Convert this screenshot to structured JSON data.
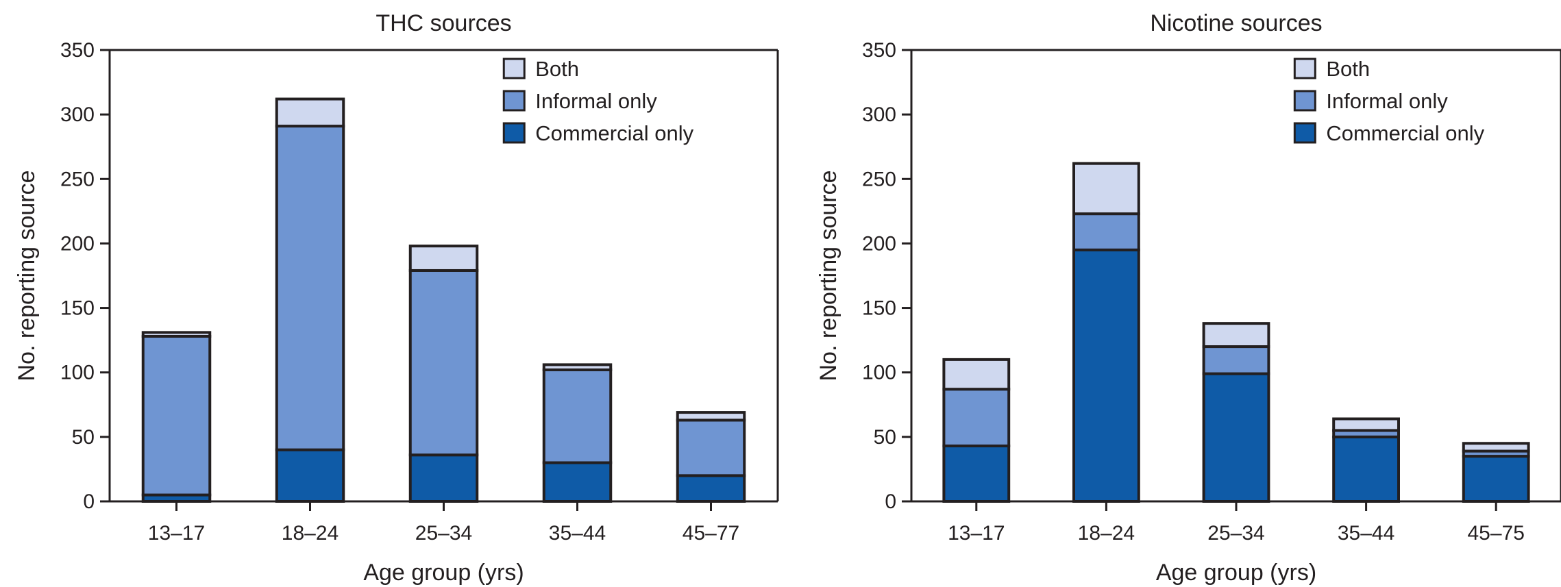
{
  "chart_data": [
    {
      "type": "bar",
      "stacked": true,
      "title": "THC sources",
      "xlabel": "Age group (yrs)",
      "ylabel": "No. reporting source",
      "ylim": [
        0,
        350
      ],
      "yticks": [
        0,
        50,
        100,
        150,
        200,
        250,
        300,
        350
      ],
      "grid": false,
      "legend_position": "top-right",
      "categories": [
        "13–17",
        "18–24",
        "25–34",
        "35–44",
        "45–77"
      ],
      "series": [
        {
          "name": "Commercial only",
          "color": "#0f5ba7",
          "values": [
            5,
            40,
            36,
            30,
            20
          ]
        },
        {
          "name": "Informal only",
          "color": "#6f95d2",
          "values": [
            123,
            251,
            143,
            72,
            43
          ]
        },
        {
          "name": "Both",
          "color": "#cfd8ef",
          "values": [
            3,
            21,
            19,
            4,
            6
          ]
        }
      ]
    },
    {
      "type": "bar",
      "stacked": true,
      "title": "Nicotine sources",
      "xlabel": "Age group (yrs)",
      "ylabel": "No. reporting source",
      "ylim": [
        0,
        350
      ],
      "yticks": [
        0,
        50,
        100,
        150,
        200,
        250,
        300,
        350
      ],
      "grid": false,
      "legend_position": "top-right",
      "categories": [
        "13–17",
        "18–24",
        "25–34",
        "35–44",
        "45–75"
      ],
      "series": [
        {
          "name": "Commercial only",
          "color": "#0f5ba7",
          "values": [
            43,
            195,
            99,
            50,
            35
          ]
        },
        {
          "name": "Informal only",
          "color": "#6f95d2",
          "values": [
            44,
            28,
            21,
            5,
            4
          ]
        },
        {
          "name": "Both",
          "color": "#cfd8ef",
          "values": [
            23,
            39,
            18,
            9,
            6
          ]
        }
      ]
    }
  ]
}
